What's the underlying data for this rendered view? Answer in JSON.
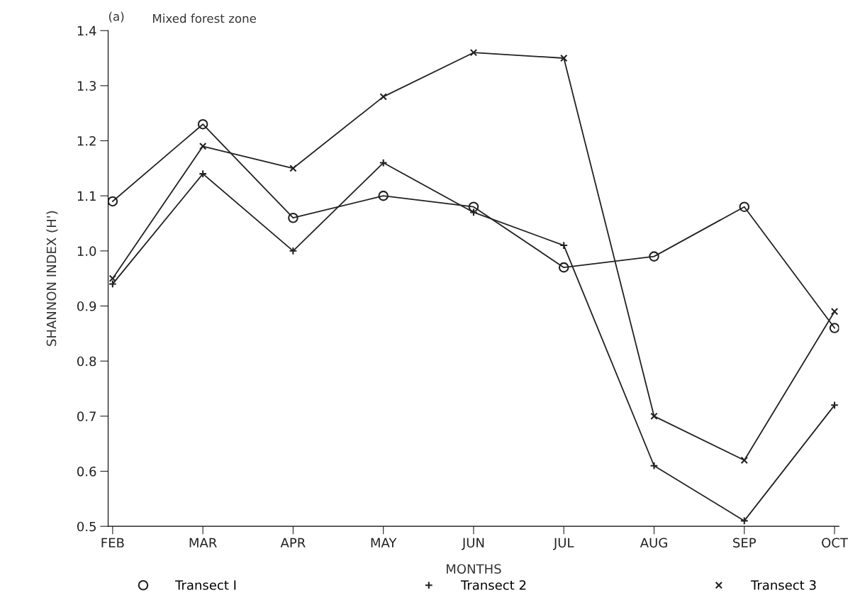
{
  "chart_data": {
    "type": "line",
    "title": "Mixed forest zone",
    "xlabel": "MONTHS",
    "ylabel": "SHANNON INDEX (H')",
    "annotations": [
      "(a)"
    ],
    "categories": [
      "FEB",
      "MAR",
      "APR",
      "MAY",
      "JUN",
      "JUL",
      "AUG",
      "SEP",
      "OCT"
    ],
    "series": [
      {
        "name": "Transect I",
        "color": "#222222",
        "marker": "circle",
        "values": [
          1.09,
          1.23,
          1.06,
          1.1,
          1.08,
          0.97,
          0.99,
          1.08,
          0.86
        ]
      },
      {
        "name": "Transect 2",
        "color": "#222222",
        "marker": "plus",
        "values": [
          0.94,
          1.14,
          1.0,
          1.16,
          1.07,
          1.01,
          0.61,
          0.51,
          0.72
        ]
      },
      {
        "name": "Transect 3",
        "color": "#222222",
        "marker": "cross",
        "values": [
          0.95,
          1.19,
          1.15,
          1.28,
          1.36,
          1.35,
          0.7,
          0.62,
          0.89
        ]
      }
    ],
    "ylim": [
      0.5,
      1.4
    ],
    "yticks": [
      0.5,
      0.6,
      0.7,
      0.8,
      0.9,
      {
        "value": 1.0,
        "label": "1.0"
      },
      1.1,
      1.2,
      1.3,
      1.4
    ],
    "grid": false,
    "legend": "bottom",
    "line_style": "solid"
  }
}
